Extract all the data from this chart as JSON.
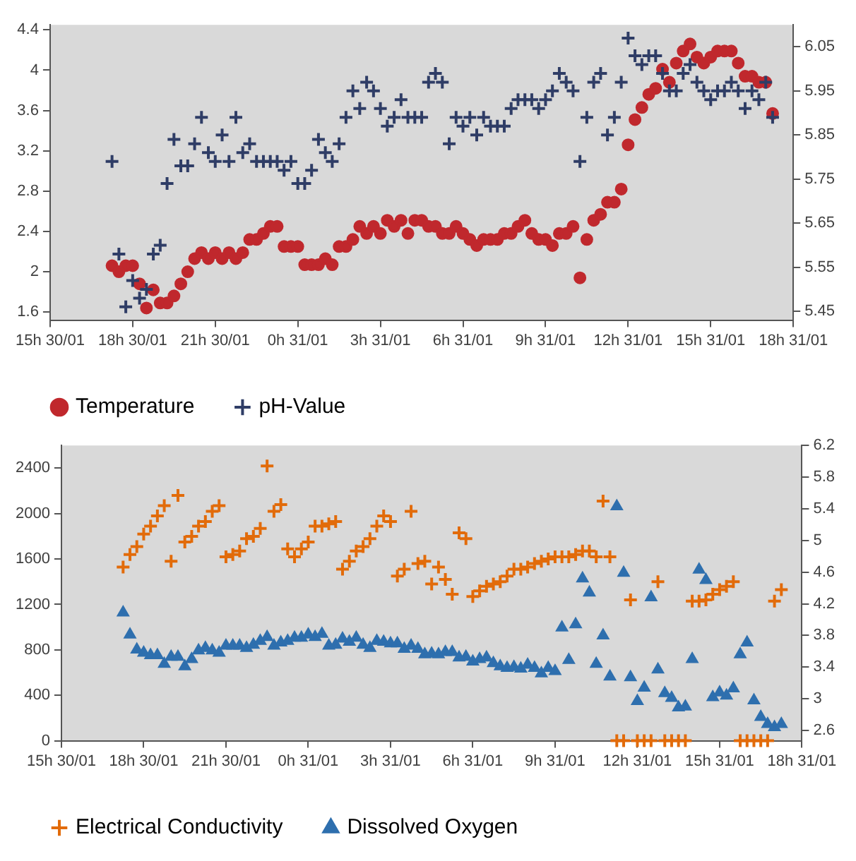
{
  "chart_data": [
    {
      "type": "scatter",
      "legend": "bottom",
      "xlim": [
        "--01-30T15:00",
        "--01-31T18:00"
      ],
      "xticks": [
        {
          "value": "--01-30T15:00",
          "label": "15h 30/01"
        },
        {
          "value": "--01-30T18:00",
          "label": "18h 30/01"
        },
        {
          "value": "--01-30T21:00",
          "label": "21h 30/01"
        },
        {
          "value": "--01-31T00:00",
          "label": "0h 31/01"
        },
        {
          "value": "--01-31T03:00",
          "label": "3h 31/01"
        },
        {
          "value": "--01-31T06:00",
          "label": "6h 31/01"
        },
        {
          "value": "--01-31T09:00",
          "label": "9h 31/01"
        },
        {
          "value": "--01-31T12:00",
          "label": "12h 31/01"
        },
        {
          "value": "--01-31T15:00",
          "label": "15h 31/01"
        },
        {
          "value": "--01-31T18:00",
          "label": "18h 31/01"
        }
      ],
      "ylim": [
        1.52,
        4.45
      ],
      "yticks": [
        1.6,
        2,
        2.4,
        2.8,
        3.2,
        3.6,
        4,
        4.4
      ],
      "y2lim": [
        5.43,
        6.1
      ],
      "y2ticks": [
        5.45,
        5.55,
        5.65,
        5.75,
        5.85,
        5.95,
        6.05
      ],
      "x": [
        "--01-30T17:15",
        "--01-30T17:30",
        "--01-30T17:45",
        "--01-30T18:00",
        "--01-30T18:15",
        "--01-30T18:30",
        "--01-30T18:45",
        "--01-30T19:00",
        "--01-30T19:15",
        "--01-30T19:30",
        "--01-30T19:45",
        "--01-30T20:00",
        "--01-30T20:15",
        "--01-30T20:30",
        "--01-30T20:45",
        "--01-30T21:00",
        "--01-30T21:15",
        "--01-30T21:30",
        "--01-30T21:45",
        "--01-30T22:00",
        "--01-30T22:15",
        "--01-30T22:30",
        "--01-30T22:45",
        "--01-30T23:00",
        "--01-30T23:15",
        "--01-30T23:30",
        "--01-30T23:45",
        "--01-31T00:00",
        "--01-31T00:15",
        "--01-31T00:30",
        "--01-31T00:45",
        "--01-31T01:00",
        "--01-31T01:15",
        "--01-31T01:30",
        "--01-31T01:45",
        "--01-31T02:00",
        "--01-31T02:15",
        "--01-31T02:30",
        "--01-31T02:45",
        "--01-31T03:00",
        "--01-31T03:15",
        "--01-31T03:30",
        "--01-31T03:45",
        "--01-31T04:00",
        "--01-31T04:15",
        "--01-31T04:30",
        "--01-31T04:45",
        "--01-31T05:00",
        "--01-31T05:15",
        "--01-31T05:30",
        "--01-31T05:45",
        "--01-31T06:00",
        "--01-31T06:15",
        "--01-31T06:30",
        "--01-31T06:45",
        "--01-31T07:00",
        "--01-31T07:15",
        "--01-31T07:30",
        "--01-31T07:45",
        "--01-31T08:00",
        "--01-31T08:15",
        "--01-31T08:30",
        "--01-31T08:45",
        "--01-31T09:00",
        "--01-31T09:15",
        "--01-31T09:30",
        "--01-31T09:45",
        "--01-31T10:00",
        "--01-31T10:15",
        "--01-31T10:30",
        "--01-31T10:45",
        "--01-31T11:00",
        "--01-31T11:15",
        "--01-31T11:30",
        "--01-31T11:45",
        "--01-31T12:00",
        "--01-31T12:15",
        "--01-31T12:30",
        "--01-31T12:45",
        "--01-31T13:00",
        "--01-31T13:15",
        "--01-31T13:30",
        "--01-31T13:45",
        "--01-31T14:00",
        "--01-31T14:15",
        "--01-31T14:30",
        "--01-31T14:45",
        "--01-31T15:00",
        "--01-31T15:15",
        "--01-31T15:30",
        "--01-31T15:45",
        "--01-31T16:00",
        "--01-31T16:15",
        "--01-31T16:30",
        "--01-31T16:45",
        "--01-31T17:00",
        "--01-31T17:15"
      ],
      "series": [
        {
          "name": "Temperature",
          "color": "#c0282d",
          "marker": "circle",
          "values": [
            2.06,
            2.0,
            2.06,
            2.06,
            1.88,
            1.64,
            1.82,
            1.69,
            1.69,
            1.76,
            1.88,
            2.0,
            2.13,
            2.19,
            2.13,
            2.19,
            2.13,
            2.19,
            2.13,
            2.19,
            2.32,
            2.32,
            2.38,
            2.45,
            2.45,
            2.25,
            2.25,
            2.25,
            2.07,
            2.07,
            2.07,
            2.13,
            2.07,
            2.25,
            2.25,
            2.32,
            2.45,
            2.38,
            2.45,
            2.38,
            2.51,
            2.45,
            2.51,
            2.38,
            2.51,
            2.51,
            2.45,
            2.45,
            2.38,
            2.38,
            2.45,
            2.38,
            2.32,
            2.26,
            2.32,
            2.32,
            2.32,
            2.38,
            2.38,
            2.45,
            2.51,
            2.38,
            2.32,
            2.32,
            2.26,
            2.38,
            2.38,
            2.45,
            1.94,
            2.32,
            2.51,
            2.57,
            2.69,
            2.69,
            2.82,
            3.26,
            3.51,
            3.63,
            3.76,
            3.82,
            4.01,
            3.88,
            4.07,
            4.19,
            4.26,
            4.13,
            4.07,
            4.13,
            4.19,
            4.19,
            4.19,
            4.07,
            3.94,
            3.94,
            3.88,
            3.88,
            3.57
          ]
        },
        {
          "name": "pH-Value",
          "color": "#2f3d66",
          "marker": "cross",
          "axis": "y2",
          "values": [
            5.79,
            5.58,
            5.46,
            5.52,
            5.48,
            5.5,
            5.58,
            5.6,
            5.74,
            5.84,
            5.78,
            5.78,
            5.83,
            5.89,
            5.81,
            5.79,
            5.85,
            5.79,
            5.89,
            5.81,
            5.83,
            5.79,
            5.79,
            5.79,
            5.79,
            5.77,
            5.79,
            5.74,
            5.74,
            5.77,
            5.84,
            5.81,
            5.79,
            5.83,
            5.89,
            5.95,
            5.91,
            5.97,
            5.95,
            5.91,
            5.87,
            5.89,
            5.93,
            5.89,
            5.89,
            5.89,
            5.97,
            5.99,
            5.97,
            5.83,
            5.89,
            5.87,
            5.89,
            5.85,
            5.89,
            5.87,
            5.87,
            5.87,
            5.91,
            5.93,
            5.93,
            5.93,
            5.91,
            5.93,
            5.95,
            5.99,
            5.97,
            5.95,
            5.79,
            5.89,
            5.97,
            5.99,
            5.85,
            5.89,
            5.97,
            6.07,
            6.03,
            6.01,
            6.03,
            6.03,
            5.99,
            5.95,
            5.95,
            5.99,
            6.01,
            5.97,
            5.95,
            5.93,
            5.95,
            5.95,
            5.97,
            5.95,
            5.91,
            5.95,
            5.93,
            5.97,
            5.89
          ]
        }
      ]
    },
    {
      "type": "scatter",
      "legend": "bottom",
      "xlim": [
        "--01-30T15:00",
        "--01-31T18:00"
      ],
      "xticks": [
        {
          "value": "--01-30T15:00",
          "label": "15h 30/01"
        },
        {
          "value": "--01-30T18:00",
          "label": "18h 30/01"
        },
        {
          "value": "--01-30T21:00",
          "label": "21h 30/01"
        },
        {
          "value": "--01-31T00:00",
          "label": "0h 31/01"
        },
        {
          "value": "--01-31T03:00",
          "label": "3h 31/01"
        },
        {
          "value": "--01-31T06:00",
          "label": "6h 31/01"
        },
        {
          "value": "--01-31T09:00",
          "label": "9h 31/01"
        },
        {
          "value": "--01-31T12:00",
          "label": "12h 31/01"
        },
        {
          "value": "--01-31T15:00",
          "label": "15h 31/01"
        },
        {
          "value": "--01-31T18:00",
          "label": "18h 31/01"
        }
      ],
      "ylim": [
        0,
        2600
      ],
      "yticks": [
        0,
        400,
        800,
        1200,
        1600,
        2000,
        2400
      ],
      "y2lim": [
        2.47,
        6.2
      ],
      "y2ticks": [
        2.6,
        3,
        3.4,
        3.8,
        4.2,
        4.6,
        5,
        5.4,
        5.8,
        6.2
      ],
      "x": [
        "--01-30T17:15",
        "--01-30T17:30",
        "--01-30T17:45",
        "--01-30T18:00",
        "--01-30T18:15",
        "--01-30T18:30",
        "--01-30T18:45",
        "--01-30T19:00",
        "--01-30T19:15",
        "--01-30T19:30",
        "--01-30T19:45",
        "--01-30T20:00",
        "--01-30T20:15",
        "--01-30T20:30",
        "--01-30T20:45",
        "--01-30T21:00",
        "--01-30T21:15",
        "--01-30T21:30",
        "--01-30T21:45",
        "--01-30T22:00",
        "--01-30T22:15",
        "--01-30T22:30",
        "--01-30T22:45",
        "--01-30T23:00",
        "--01-30T23:15",
        "--01-30T23:30",
        "--01-30T23:45",
        "--01-31T00:00",
        "--01-31T00:15",
        "--01-31T00:30",
        "--01-31T00:45",
        "--01-31T01:00",
        "--01-31T01:15",
        "--01-31T01:30",
        "--01-31T01:45",
        "--01-31T02:00",
        "--01-31T02:15",
        "--01-31T02:30",
        "--01-31T02:45",
        "--01-31T03:00",
        "--01-31T03:15",
        "--01-31T03:30",
        "--01-31T03:45",
        "--01-31T04:00",
        "--01-31T04:15",
        "--01-31T04:30",
        "--01-31T04:45",
        "--01-31T05:00",
        "--01-31T05:15",
        "--01-31T05:30",
        "--01-31T05:45",
        "--01-31T06:00",
        "--01-31T06:15",
        "--01-31T06:30",
        "--01-31T06:45",
        "--01-31T07:00",
        "--01-31T07:15",
        "--01-31T07:30",
        "--01-31T07:45",
        "--01-31T08:00",
        "--01-31T08:15",
        "--01-31T08:30",
        "--01-31T08:45",
        "--01-31T09:00",
        "--01-31T09:15",
        "--01-31T09:30",
        "--01-31T09:45",
        "--01-31T10:00",
        "--01-31T10:15",
        "--01-31T10:30",
        "--01-31T10:45",
        "--01-31T11:00",
        "--01-31T11:15",
        "--01-31T11:30",
        "--01-31T11:45",
        "--01-31T12:00",
        "--01-31T12:15",
        "--01-31T12:30",
        "--01-31T12:45",
        "--01-31T13:00",
        "--01-31T13:15",
        "--01-31T13:30",
        "--01-31T13:45",
        "--01-31T14:00",
        "--01-31T14:15",
        "--01-31T14:30",
        "--01-31T14:45",
        "--01-31T15:00",
        "--01-31T15:15",
        "--01-31T15:30",
        "--01-31T15:45",
        "--01-31T16:00",
        "--01-31T16:15",
        "--01-31T16:30",
        "--01-31T16:45",
        "--01-31T17:00",
        "--01-31T17:15"
      ],
      "series": [
        {
          "name": "Electrical Conductivity",
          "color": "#e26b0a",
          "marker": "cross",
          "values": [
            1530,
            1640,
            1710,
            1820,
            1890,
            1980,
            2070,
            1580,
            2160,
            1750,
            1800,
            1890,
            1930,
            2020,
            2070,
            1620,
            1640,
            1670,
            1780,
            1800,
            1870,
            2420,
            2020,
            2080,
            1690,
            1620,
            1690,
            1750,
            1890,
            1890,
            1910,
            1930,
            1510,
            1580,
            1670,
            1710,
            1780,
            1890,
            1980,
            1930,
            1450,
            1510,
            2020,
            1560,
            1580,
            1380,
            1530,
            1420,
            1290,
            1830,
            1780,
            1270,
            1320,
            1360,
            1380,
            1400,
            1450,
            1510,
            1510,
            1530,
            1560,
            1580,
            1600,
            1620,
            1620,
            1620,
            1640,
            1670,
            1670,
            1620,
            2110,
            1620,
            0,
            0,
            1240,
            0,
            0,
            0,
            1400,
            0,
            0,
            0,
            0,
            1230,
            1230,
            1240,
            1290,
            1330,
            1360,
            1400,
            0,
            0,
            0,
            0,
            0,
            1230,
            1330
          ]
        },
        {
          "name": "Dissolved Oxygen",
          "color": "#2e6fae",
          "marker": "triangle",
          "axis": "y2",
          "values": [
            4.09,
            3.81,
            3.62,
            3.58,
            3.55,
            3.55,
            3.44,
            3.53,
            3.53,
            3.41,
            3.5,
            3.61,
            3.64,
            3.61,
            3.58,
            3.67,
            3.67,
            3.67,
            3.64,
            3.68,
            3.73,
            3.78,
            3.67,
            3.71,
            3.73,
            3.77,
            3.77,
            3.81,
            3.78,
            3.82,
            3.67,
            3.68,
            3.76,
            3.72,
            3.77,
            3.68,
            3.64,
            3.73,
            3.72,
            3.7,
            3.7,
            3.63,
            3.67,
            3.63,
            3.56,
            3.57,
            3.56,
            3.59,
            3.59,
            3.52,
            3.53,
            3.47,
            3.5,
            3.52,
            3.45,
            3.41,
            3.39,
            3.4,
            3.38,
            3.43,
            3.39,
            3.32,
            3.39,
            3.35,
            3.9,
            3.49,
            3.94,
            4.52,
            4.34,
            3.44,
            3.8,
            3.28,
            5.43,
            4.59,
            3.27,
            2.97,
            3.14,
            4.28,
            3.37,
            3.07,
            3.01,
            2.89,
            2.9,
            3.5,
            4.63,
            4.5,
            3.02,
            3.08,
            3.04,
            3.13,
            3.56,
            3.71,
            2.98,
            2.77,
            2.68,
            2.64,
            2.68
          ]
        }
      ]
    }
  ]
}
